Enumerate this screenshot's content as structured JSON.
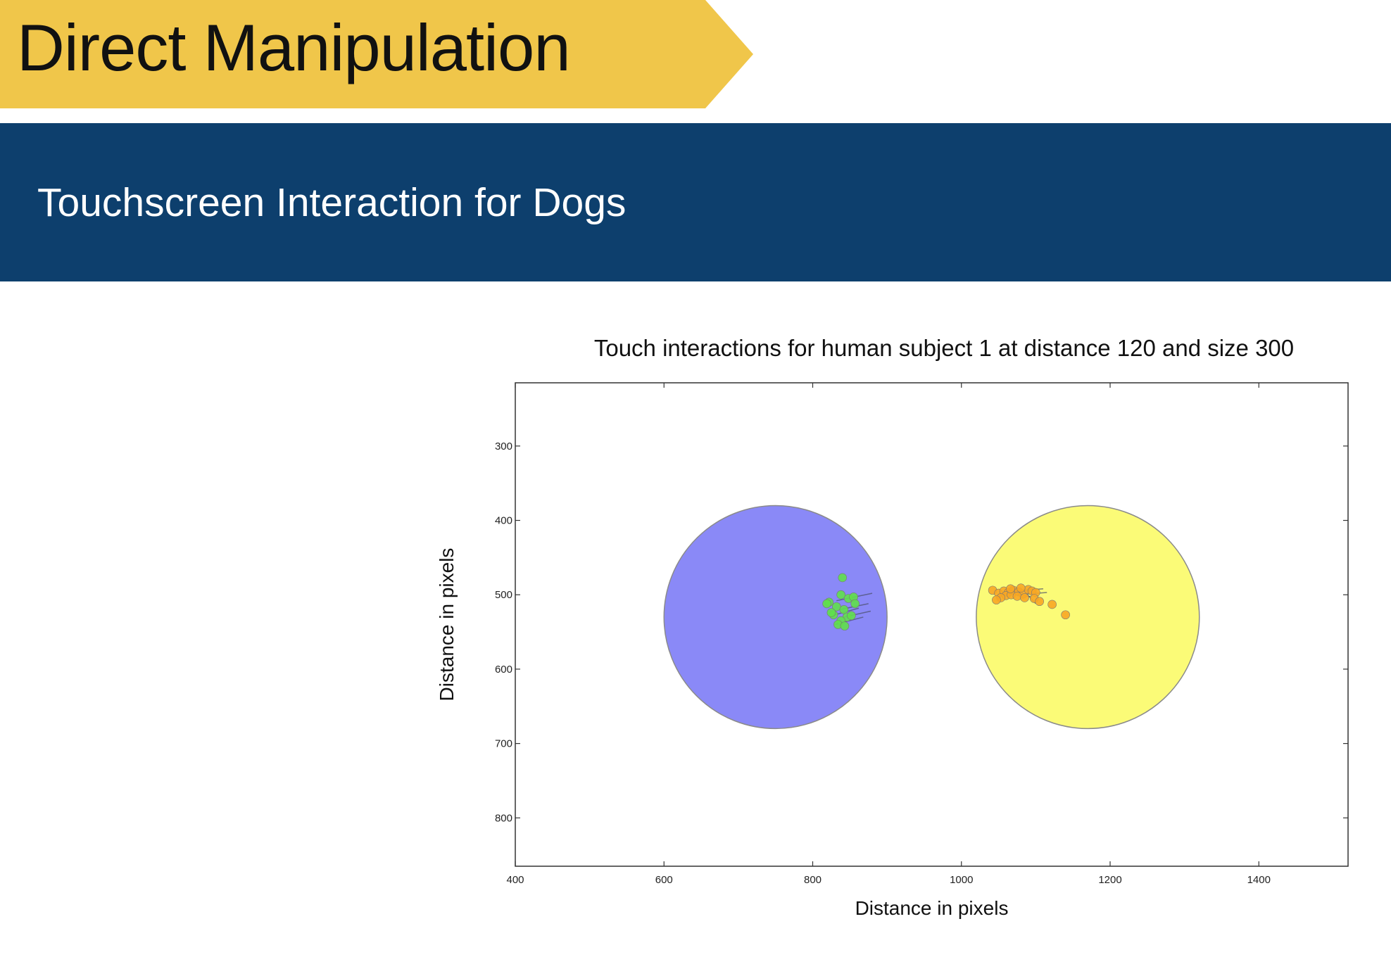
{
  "slide": {
    "title": "Direct Manipulation",
    "subtitle": "Touchscreen Interaction for Dogs"
  },
  "colors": {
    "title_banner": "#f0c64a",
    "subtitle_bar": "#0d3f6d",
    "blue_target": "#8a89f7",
    "yellow_target": "#fbfb77",
    "green_touch": "#5fe04a",
    "orange_touch": "#f7a623"
  },
  "chart_data": {
    "type": "scatter",
    "title": "Touch interactions for human subject 1 at distance 120 and size 300",
    "xlabel": "Distance in pixels",
    "ylabel": "Distance in pixels",
    "xlim": [
      400,
      1520
    ],
    "ylim": [
      865,
      215
    ],
    "y_inverted": true,
    "grid": false,
    "xticks": [
      400,
      600,
      800,
      1000,
      1200,
      1400
    ],
    "yticks": [
      300,
      400,
      500,
      600,
      700,
      800
    ],
    "targets": [
      {
        "cx": 750,
        "cy": 530,
        "r": 150,
        "color": "#8a89f7"
      },
      {
        "cx": 1170,
        "cy": 530,
        "r": 150,
        "color": "#fbfb77"
      }
    ],
    "series": [
      {
        "color": "#5fe04a",
        "points": [
          [
            840,
            477
          ],
          [
            822,
            510
          ],
          [
            838,
            500
          ],
          [
            848,
            505
          ],
          [
            855,
            503
          ],
          [
            832,
            516
          ],
          [
            842,
            520
          ],
          [
            828,
            527
          ],
          [
            846,
            530
          ],
          [
            838,
            535
          ],
          [
            852,
            528
          ],
          [
            834,
            540
          ],
          [
            843,
            542
          ],
          [
            825,
            524
          ],
          [
            857,
            512
          ],
          [
            819,
            512
          ]
        ],
        "segments": [
          [
            [
              832,
              508
            ],
            [
              880,
              498
            ]
          ],
          [
            [
              836,
              520
            ],
            [
              875,
              512
            ]
          ],
          [
            [
              842,
              530
            ],
            [
              878,
              522
            ]
          ],
          [
            [
              830,
              540
            ],
            [
              868,
              530
            ]
          ],
          [
            [
              826,
              528
            ],
            [
              862,
              518
            ]
          ]
        ]
      },
      {
        "color": "#f7a623",
        "points": [
          [
            1042,
            494
          ],
          [
            1050,
            498
          ],
          [
            1057,
            495
          ],
          [
            1063,
            497
          ],
          [
            1070,
            494
          ],
          [
            1077,
            496
          ],
          [
            1083,
            499
          ],
          [
            1090,
            493
          ],
          [
            1095,
            495
          ],
          [
            1100,
            497
          ],
          [
            1060,
            501
          ],
          [
            1067,
            500
          ],
          [
            1053,
            504
          ],
          [
            1047,
            507
          ],
          [
            1075,
            502
          ],
          [
            1085,
            504
          ],
          [
            1098,
            505
          ],
          [
            1105,
            509
          ],
          [
            1122,
            513
          ],
          [
            1140,
            527
          ],
          [
            1066,
            492
          ],
          [
            1080,
            491
          ]
        ],
        "segments": [
          [
            [
              1060,
              497
            ],
            [
              1095,
              503
            ]
          ],
          [
            [
              1070,
              495
            ],
            [
              1110,
              492
            ]
          ],
          [
            [
              1088,
              499
            ],
            [
              1100,
              512
            ]
          ],
          [
            [
              1075,
              500
            ],
            [
              1115,
              497
            ]
          ]
        ]
      }
    ]
  }
}
